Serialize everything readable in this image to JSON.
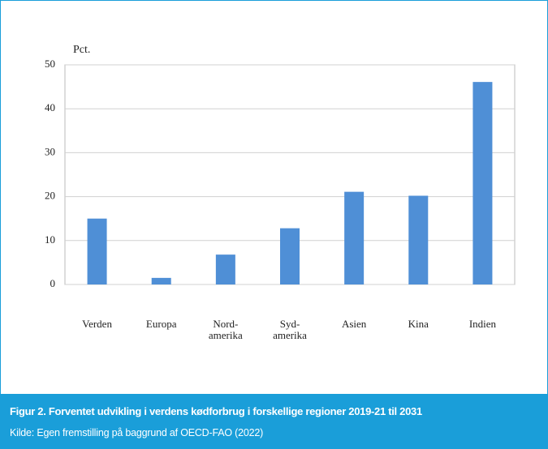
{
  "chart_data": {
    "type": "bar",
    "ylabel": "Pct.",
    "categories": [
      "Verden",
      "Europa",
      "Nord-\namerika",
      "Syd-\namerika",
      "Asien",
      "Kina",
      "Indien"
    ],
    "values": [
      15,
      1.5,
      6.8,
      12.8,
      21.1,
      20.2,
      46.1
    ],
    "color": "#4f8fd6",
    "ylim": [
      0,
      50
    ],
    "yticks": [
      0,
      10,
      20,
      30,
      40,
      50
    ],
    "grid": true
  },
  "caption": {
    "title": "Figur 2. Forventet udvikling i verdens kødforbrug i forskellige regioner 2019-21 til 2031",
    "source": "Kilde: Egen fremstilling på baggrund af OECD-FAO (2022)"
  }
}
